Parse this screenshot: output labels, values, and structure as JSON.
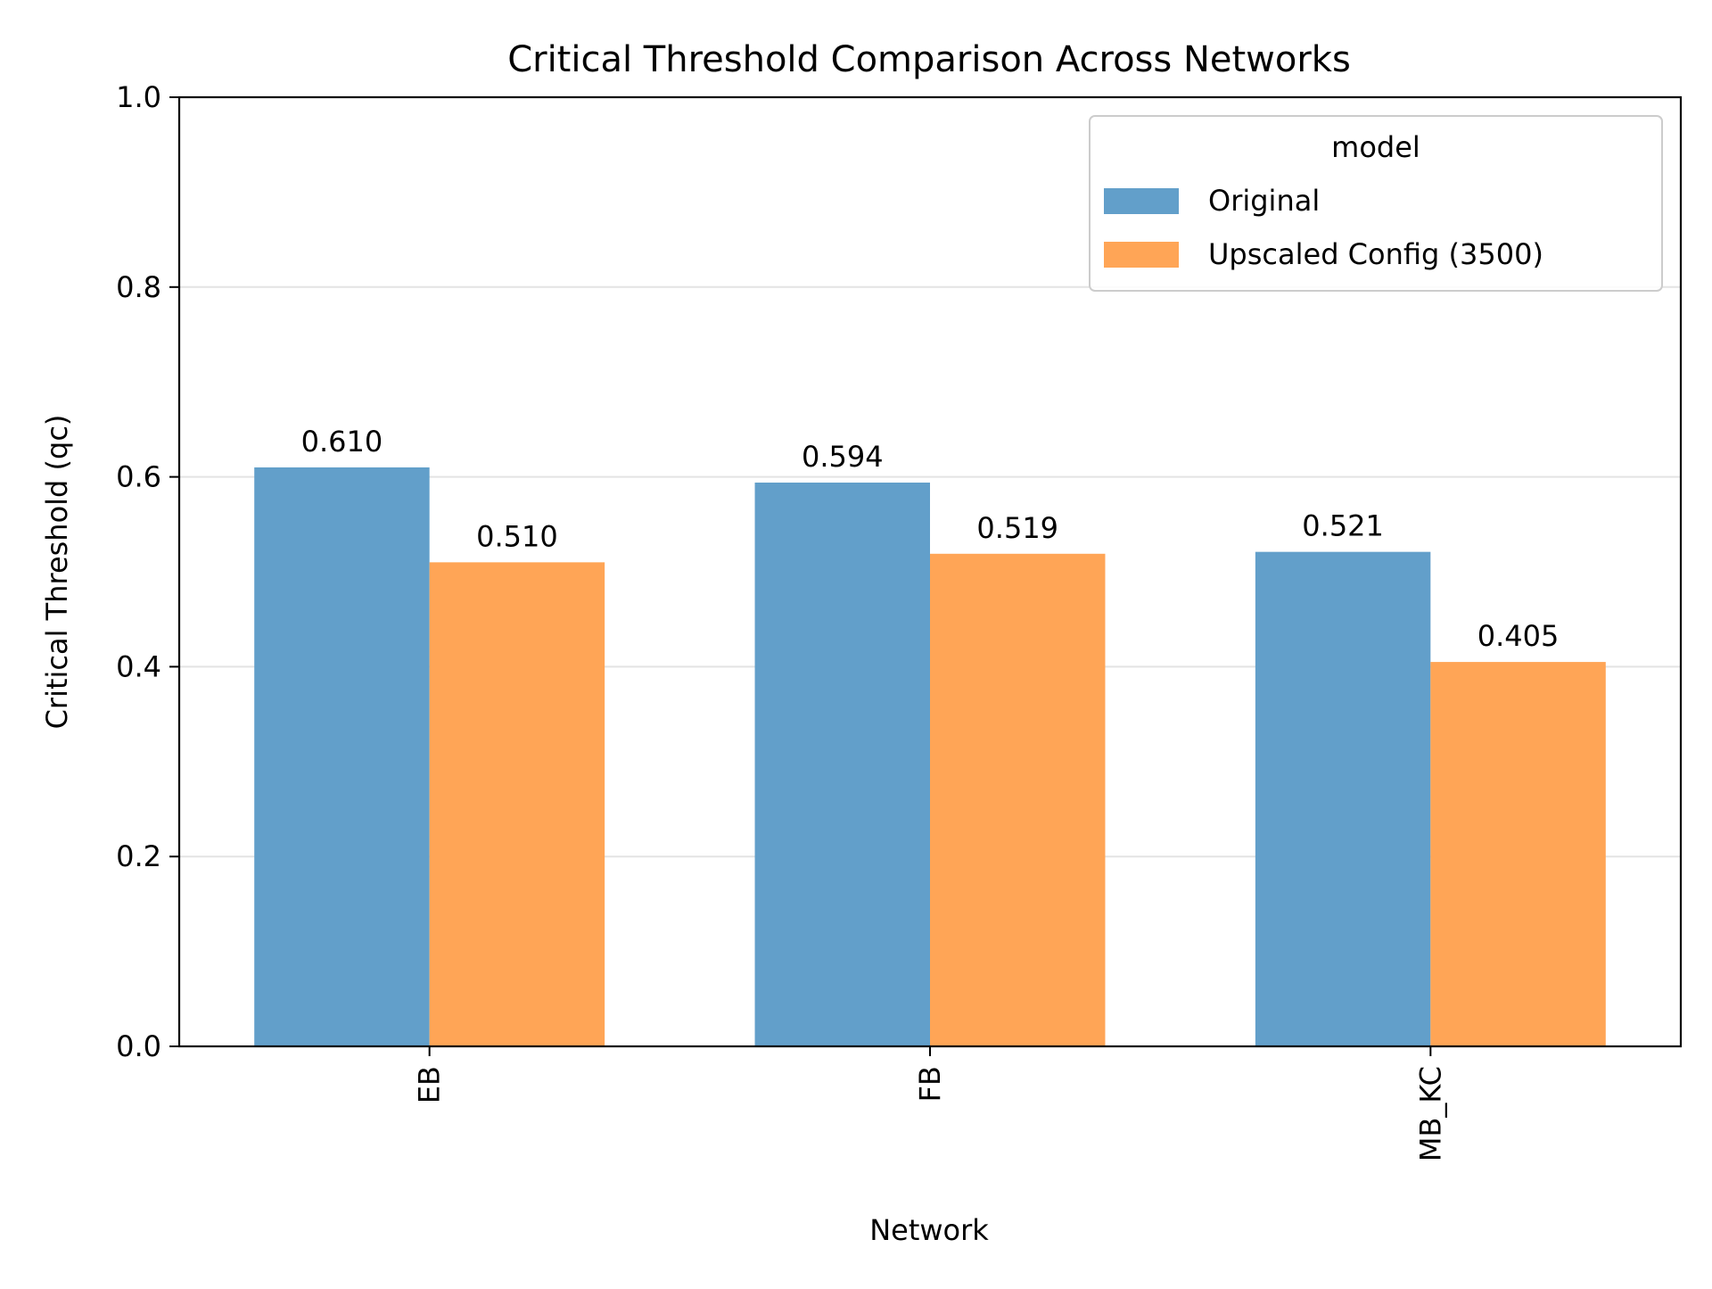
{
  "chart_data": {
    "type": "bar",
    "title": "Critical Threshold Comparison Across Networks",
    "xlabel": "Network",
    "ylabel": "Critical Threshold (qc)",
    "ylim": [
      0,
      1.0
    ],
    "yticks": [
      "0.0",
      "0.2",
      "0.4",
      "0.6",
      "0.8",
      "1.0"
    ],
    "categories": [
      "EB",
      "FB",
      "MB_KC"
    ],
    "grid": "horizontal",
    "legend": {
      "title": "model",
      "placement": "top-right"
    },
    "series": [
      {
        "name": "Original",
        "color": "#629fca",
        "values": [
          0.61,
          0.594,
          0.521
        ],
        "labels": [
          "0.610",
          "0.594",
          "0.521"
        ]
      },
      {
        "name": "Upscaled Config (3500)",
        "color": "#ffa556",
        "values": [
          0.51,
          0.519,
          0.405
        ],
        "labels": [
          "0.510",
          "0.519",
          "0.405"
        ]
      }
    ]
  }
}
